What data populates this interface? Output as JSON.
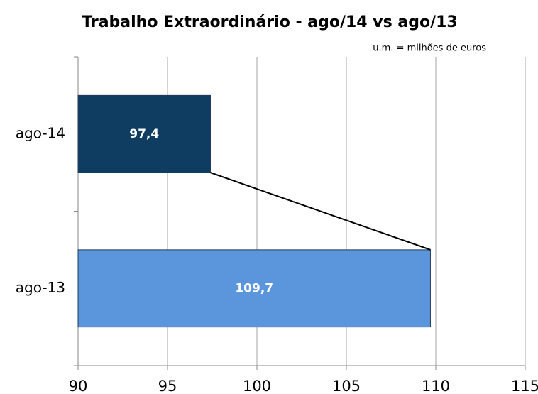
{
  "chart_data": {
    "type": "barh",
    "title": "Trabalho Extraordinário  - ago/14 vs ago/13",
    "subtitle": "u.m. = milhões de euros",
    "categories": [
      "ago-14",
      "ago-13"
    ],
    "values": [
      97.4,
      109.7
    ],
    "value_labels": [
      "97,4",
      "109,7"
    ],
    "colors": [
      "#0e3d61",
      "#5b96dc"
    ],
    "xlim": [
      90,
      115
    ],
    "xticks": [
      90,
      95,
      100,
      105,
      110,
      115
    ],
    "grid": true
  }
}
